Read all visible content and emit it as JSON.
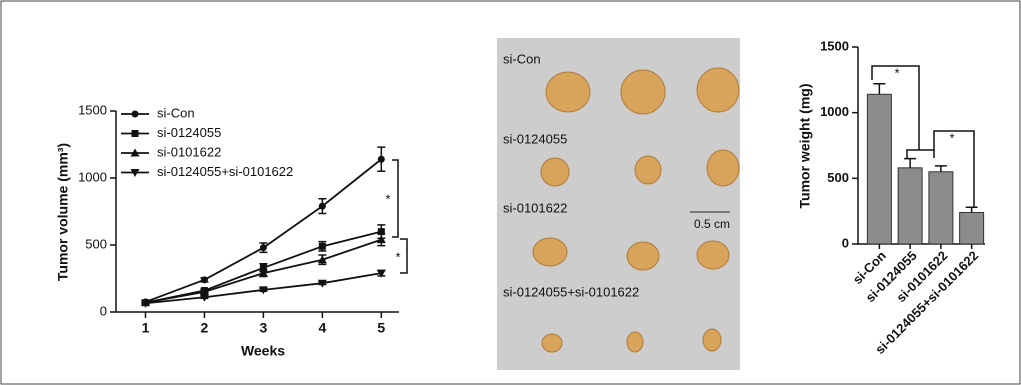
{
  "chart_data": [
    {
      "type": "line",
      "xlabel": "Weeks",
      "ylabel": "Tumor volume (mm³)",
      "x": [
        1,
        2,
        3,
        4,
        5
      ],
      "xlim": [
        0.5,
        5.3
      ],
      "xticks": [
        1,
        2,
        3,
        4,
        5
      ],
      "ylim": [
        0,
        1500
      ],
      "yticks": [
        0,
        500,
        1000,
        1500
      ],
      "legend": "upper left",
      "series": [
        {
          "name": "si-Con",
          "color": "#111111",
          "marker": "circle",
          "values": [
            75,
            240,
            480,
            790,
            1140
          ],
          "errors": [
            10,
            15,
            35,
            55,
            90
          ]
        },
        {
          "name": "si-0124055",
          "color": "#111111",
          "marker": "square",
          "values": [
            70,
            160,
            330,
            490,
            600
          ],
          "errors": [
            8,
            12,
            30,
            35,
            50
          ]
        },
        {
          "name": "si-0101622",
          "color": "#111111",
          "marker": "triangle",
          "values": [
            70,
            150,
            290,
            390,
            540
          ],
          "errors": [
            8,
            12,
            25,
            35,
            45
          ]
        },
        {
          "name": "si-0124055+si-0101622",
          "color": "#111111",
          "marker": "triangle-down",
          "values": [
            65,
            110,
            165,
            215,
            290
          ],
          "errors": [
            5,
            8,
            10,
            10,
            20
          ]
        }
      ],
      "annotations": [
        "*",
        "*"
      ]
    },
    {
      "type": "bar",
      "ylabel": "Tumor weight (mg)",
      "categories": [
        "si-Con",
        "si-0124055",
        "si-0101622",
        "si-0124055+si-0101622"
      ],
      "values": [
        1140,
        580,
        550,
        240
      ],
      "errors": [
        80,
        70,
        45,
        40
      ],
      "color": "#8c8c8c",
      "ylim": [
        0,
        1500
      ],
      "yticks": [
        0,
        500,
        1000,
        1500
      ],
      "annotations": [
        "*",
        "*"
      ]
    }
  ],
  "photo": {
    "labels": [
      "si-Con",
      "si-0124055",
      "si-0101622",
      "si-0124055+si-0101622"
    ],
    "scale_bar": "0.5 cm"
  }
}
